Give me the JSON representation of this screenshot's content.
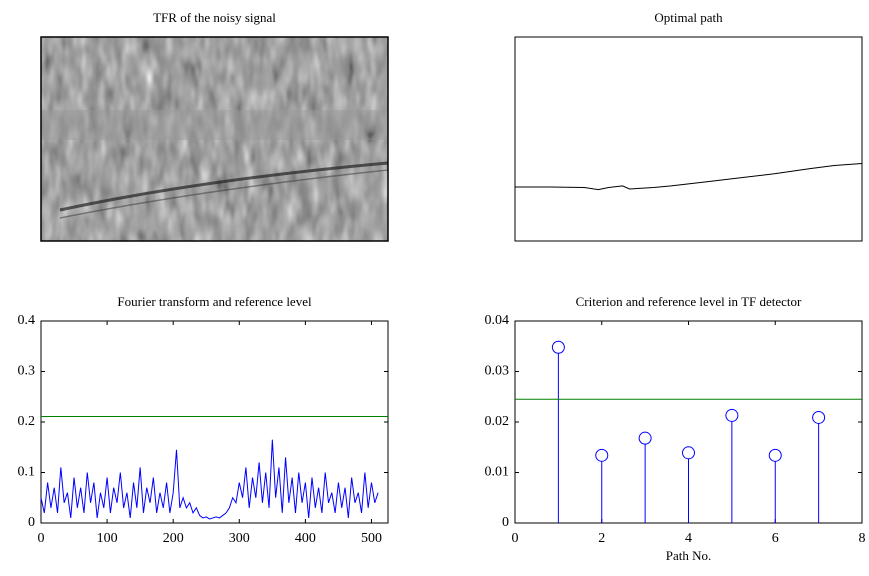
{
  "chart_data": [
    {
      "type": "image",
      "title": "TFR of the noisy signal"
    },
    {
      "type": "line",
      "title": "Optimal path",
      "xlim": [
        0,
        100
      ],
      "ylim": [
        0,
        1
      ],
      "series": [
        {
          "color": "#000000",
          "x": [
            0,
            10,
            20,
            24,
            27,
            31,
            33,
            40,
            45,
            55,
            65,
            75,
            85,
            92,
            100
          ],
          "values": [
            0.265,
            0.265,
            0.262,
            0.252,
            0.262,
            0.27,
            0.255,
            0.262,
            0.27,
            0.29,
            0.31,
            0.33,
            0.355,
            0.37,
            0.38
          ]
        }
      ]
    },
    {
      "type": "line",
      "title": "Fourier transform and reference level",
      "xlim": [
        0,
        525
      ],
      "ylim": [
        0,
        0.4
      ],
      "xticks": [
        0,
        100,
        200,
        300,
        400,
        500
      ],
      "yticks": [
        0,
        0.1,
        0.2,
        0.3,
        0.4
      ],
      "series": [
        {
          "color": "#0000ff",
          "x": [
            0,
            5,
            10,
            15,
            20,
            25,
            30,
            35,
            40,
            45,
            50,
            55,
            60,
            65,
            70,
            75,
            80,
            85,
            90,
            95,
            100,
            105,
            110,
            115,
            120,
            125,
            130,
            135,
            140,
            145,
            150,
            155,
            160,
            165,
            170,
            175,
            180,
            185,
            190,
            195,
            200,
            205,
            210,
            215,
            220,
            225,
            230,
            235,
            240,
            245,
            250,
            255,
            260,
            265,
            270,
            275,
            280,
            285,
            290,
            295,
            300,
            305,
            310,
            315,
            320,
            325,
            330,
            335,
            340,
            345,
            350,
            355,
            360,
            365,
            370,
            375,
            380,
            385,
            390,
            395,
            400,
            405,
            410,
            415,
            420,
            425,
            430,
            435,
            440,
            445,
            450,
            455,
            460,
            465,
            470,
            475,
            480,
            485,
            490,
            495,
            500,
            505,
            510
          ],
          "values": [
            0.05,
            0.02,
            0.08,
            0.03,
            0.07,
            0.02,
            0.11,
            0.04,
            0.06,
            0.01,
            0.09,
            0.03,
            0.07,
            0.02,
            0.1,
            0.04,
            0.08,
            0.01,
            0.06,
            0.03,
            0.09,
            0.02,
            0.07,
            0.04,
            0.1,
            0.03,
            0.06,
            0.01,
            0.08,
            0.03,
            0.11,
            0.02,
            0.07,
            0.04,
            0.09,
            0.02,
            0.06,
            0.03,
            0.08,
            0.02,
            0.06,
            0.145,
            0.03,
            0.05,
            0.03,
            0.04,
            0.02,
            0.03,
            0.015,
            0.01,
            0.012,
            0.008,
            0.01,
            0.012,
            0.01,
            0.015,
            0.02,
            0.03,
            0.05,
            0.04,
            0.08,
            0.05,
            0.11,
            0.03,
            0.09,
            0.05,
            0.12,
            0.04,
            0.1,
            0.03,
            0.165,
            0.05,
            0.11,
            0.02,
            0.13,
            0.04,
            0.09,
            0.02,
            0.1,
            0.04,
            0.08,
            0.01,
            0.09,
            0.03,
            0.07,
            0.02,
            0.1,
            0.04,
            0.06,
            0.02,
            0.08,
            0.03,
            0.07,
            0.01,
            0.09,
            0.04,
            0.06,
            0.02,
            0.1,
            0.03,
            0.08,
            0.04,
            0.06
          ]
        },
        {
          "color": "#008000",
          "x": [
            0,
            525
          ],
          "values": [
            0.211,
            0.211
          ]
        }
      ]
    },
    {
      "type": "stem",
      "title": "Criterion and reference level in TF detector",
      "xlabel": "Path No.",
      "xlim": [
        0,
        8
      ],
      "ylim": [
        0,
        0.04
      ],
      "xticks": [
        0,
        2,
        4,
        6,
        8
      ],
      "yticks": [
        0,
        0.01,
        0.02,
        0.03,
        0.04
      ],
      "series": [
        {
          "color": "#0000ff",
          "x": [
            1,
            2,
            3,
            4,
            5,
            6,
            7
          ],
          "values": [
            0.0348,
            0.0134,
            0.0168,
            0.0139,
            0.0213,
            0.0134,
            0.0209
          ]
        },
        {
          "type": "line",
          "color": "#008000",
          "x": [
            0,
            8
          ],
          "values": [
            0.0245,
            0.0245
          ]
        }
      ]
    }
  ]
}
